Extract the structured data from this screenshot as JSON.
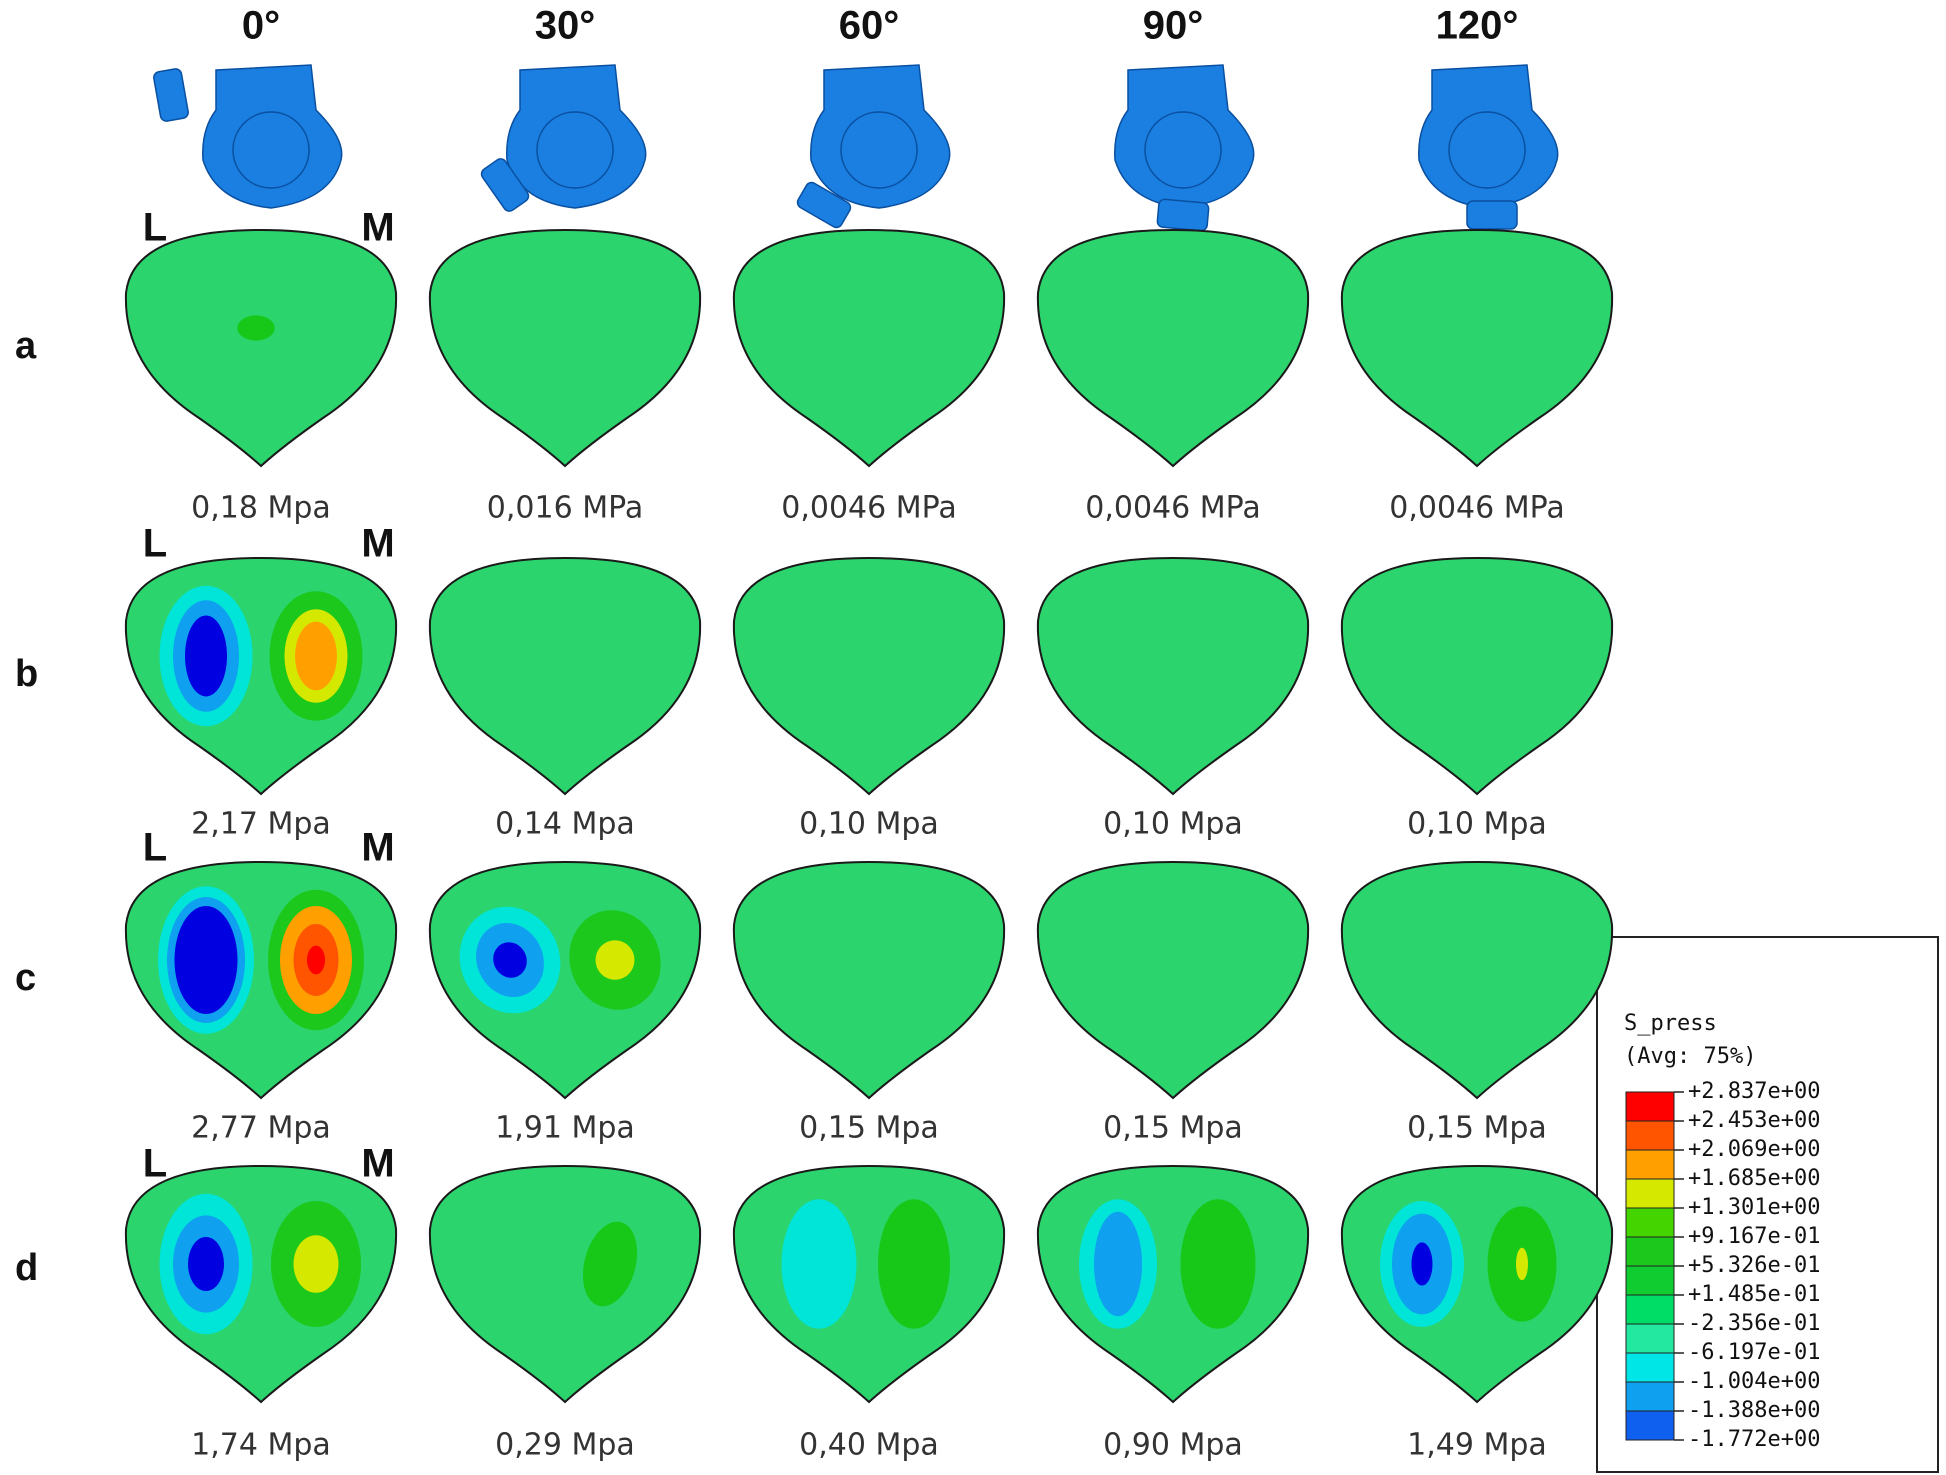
{
  "columns": [
    "0°",
    "30°",
    "60°",
    "90°",
    "120°"
  ],
  "side_labels": {
    "left": "L",
    "right": "M"
  },
  "rows": [
    {
      "label": "a",
      "values": [
        "0,18 Mpa",
        "0,016 MPa",
        "0,0046 MPa",
        "0,0046 MPa",
        "0,0046 MPa"
      ]
    },
    {
      "label": "b",
      "values": [
        "2,17 Mpa",
        "0,14 Mpa",
        "0,10 Mpa",
        "0,10 Mpa",
        "0,10 Mpa"
      ]
    },
    {
      "label": "c",
      "values": [
        "2,77 Mpa",
        "1,91 Mpa",
        "0,15 Mpa",
        "0,15 Mpa",
        "0,15 Mpa"
      ]
    },
    {
      "label": "d",
      "values": [
        "1,74 Mpa",
        "0,29 Mpa",
        "0,40 Mpa",
        "0,90 Mpa",
        "1,49 Mpa"
      ]
    }
  ],
  "legend": {
    "title": "S_press",
    "subtitle": "(Avg: 75%)",
    "levels": [
      "+2.837e+00",
      "+2.453e+00",
      "+2.069e+00",
      "+1.685e+00",
      "+1.301e+00",
      "+9.167e-01",
      "+5.326e-01",
      "+1.485e-01",
      "-2.356e-01",
      "-6.197e-01",
      "-1.004e+00",
      "-1.388e+00",
      "-1.772e+00"
    ]
  }
}
